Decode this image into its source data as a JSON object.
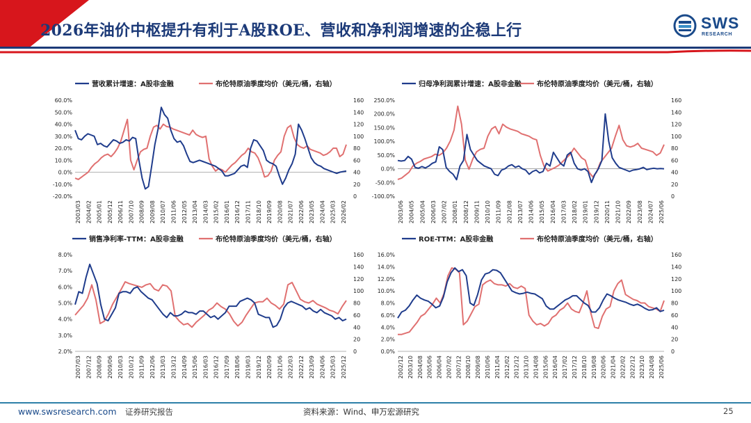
{
  "slide": {
    "title": "2026年油价中枢提升有利于A股ROE、营收和净利润增速的企稳上行",
    "colors": {
      "series": "#1f3c8c",
      "oil": "#e07070",
      "title": "#1c3a78",
      "accent": "#d7161c"
    }
  },
  "logo": {
    "name": "SWS",
    "subtitle": "RESEARCH"
  },
  "footer": {
    "url": "www.swsresearch.com",
    "tag": "证券研究报告",
    "source": "资料来源：Wind、申万宏源研究",
    "page": "25"
  },
  "chart_data": [
    {
      "type": "line",
      "series_name": "营收累计增速：A股非金融",
      "oil_name": "布伦特原油季度均价（美元/桶，右轴）",
      "y_ticks": [
        "60.0%",
        "50.0%",
        "40.0%",
        "30.0%",
        "20.0%",
        "10.0%",
        "0.0%",
        "-10.0%",
        "-20.0%"
      ],
      "ylim": [
        -20,
        60
      ],
      "y2_ticks": [
        "160",
        "140",
        "120",
        "100",
        "80",
        "60",
        "40",
        "20",
        "0"
      ],
      "y2lim": [
        0,
        160
      ],
      "x_ticks": [
        "2003/03",
        "2004/02",
        "2005/01",
        "2005/12",
        "2006/11",
        "2007/10",
        "2008/09",
        "2009/08",
        "2010/07",
        "2011/06",
        "2012/05",
        "2013/04",
        "2014/03",
        "2015/02",
        "2016/01",
        "2016/12",
        "2017/11",
        "2018/10",
        "2019/09",
        "2020/08",
        "2021/07",
        "2022/06",
        "2023/05",
        "2024/04",
        "2025/03",
        "2026/02"
      ],
      "series": [
        35,
        28,
        27,
        30,
        32,
        31,
        30,
        23,
        24,
        22,
        21,
        24,
        27,
        26,
        24,
        25,
        27,
        26,
        29,
        28,
        10,
        -5,
        -14,
        -12,
        5,
        23,
        36,
        54,
        48,
        45,
        35,
        28,
        25,
        26,
        22,
        15,
        9,
        8,
        9,
        10,
        9,
        8,
        7,
        6,
        5,
        3,
        1,
        -3,
        -3,
        -2,
        -1,
        2,
        5,
        6,
        4,
        20,
        27,
        26,
        22,
        18,
        10,
        8,
        7,
        5,
        -3,
        -10,
        -5,
        2,
        7,
        15,
        40,
        35,
        28,
        20,
        12,
        8,
        6,
        5,
        3,
        2,
        1,
        0,
        -1,
        0,
        0.5,
        1
      ],
      "oil": [
        30,
        28,
        32,
        36,
        40,
        48,
        54,
        58,
        64,
        68,
        70,
        66,
        72,
        80,
        92,
        110,
        128,
        60,
        44,
        60,
        74,
        78,
        80,
        100,
        115,
        118,
        112,
        120,
        116,
        115,
        112,
        110,
        108,
        106,
        104,
        102,
        110,
        103,
        100,
        98,
        100,
        62,
        50,
        42,
        46,
        44,
        40,
        46,
        52,
        56,
        62,
        68,
        72,
        80,
        74,
        72,
        64,
        50,
        32,
        34,
        42,
        60,
        68,
        74,
        100,
        114,
        118,
        98,
        86,
        82,
        80,
        84,
        78,
        76,
        74,
        72,
        68,
        70,
        74,
        80,
        80,
        66,
        70,
        86
      ]
    },
    {
      "type": "line",
      "series_name": "归母净利润累计增速：A股非金融",
      "oil_name": "布伦特原油季度均价（美元/桶，右轴）",
      "y_ticks": [
        "250.0%",
        "200.0%",
        "150.0%",
        "100.0%",
        "50.0%",
        "0.0%",
        "-50.0%",
        "-100.0%"
      ],
      "ylim": [
        -100,
        250
      ],
      "y2_ticks": [
        "160",
        "140",
        "120",
        "100",
        "80",
        "60",
        "40",
        "20",
        "0"
      ],
      "y2lim": [
        0,
        160
      ],
      "x_ticks": [
        "2003/06",
        "2004/05",
        "2005/04",
        "2006/03",
        "2007/02",
        "2008/01",
        "2008/12",
        "2009/11",
        "2010/10",
        "2011/09",
        "2012/08",
        "2013/07",
        "2014/06",
        "2015/05",
        "2016/04",
        "2017/03",
        "2018/02",
        "2019/01",
        "2019/12",
        "2020/11",
        "2021/10",
        "2022/09",
        "2023/08",
        "2024/07",
        "2025/06"
      ],
      "series": [
        30,
        28,
        30,
        45,
        35,
        5,
        2,
        8,
        3,
        10,
        20,
        25,
        80,
        70,
        5,
        -10,
        -20,
        -40,
        10,
        30,
        125,
        70,
        50,
        30,
        20,
        10,
        5,
        0,
        -20,
        -25,
        -5,
        0,
        10,
        15,
        5,
        10,
        0,
        -5,
        -20,
        -10,
        -5,
        -15,
        -10,
        20,
        10,
        60,
        40,
        20,
        10,
        50,
        60,
        20,
        0,
        -5,
        0,
        -10,
        -50,
        -20,
        0,
        30,
        200,
        100,
        40,
        20,
        5,
        0,
        -5,
        -10,
        -5,
        -3,
        0,
        5,
        -3,
        0,
        2,
        0,
        1,
        0
      ],
      "oil": [
        28,
        30,
        35,
        40,
        50,
        55,
        58,
        62,
        64,
        66,
        70,
        68,
        72,
        80,
        92,
        110,
        150,
        120,
        60,
        45,
        62,
        74,
        78,
        80,
        100,
        112,
        116,
        104,
        120,
        115,
        112,
        110,
        108,
        104,
        102,
        100,
        96,
        94,
        68,
        50,
        42,
        45,
        48,
        52,
        58,
        64,
        70,
        80,
        72,
        64,
        60,
        40,
        32,
        40,
        56,
        64,
        72,
        80,
        100,
        118,
        94,
        84,
        82,
        84,
        88,
        80,
        78,
        76,
        74,
        68,
        72,
        86
      ]
    },
    {
      "type": "line",
      "series_name": "销售净利率-TTM：A股非金融",
      "oil_name": "布伦特原油季度均价（美元/桶，右轴）",
      "y_ticks": [
        "8.0%",
        "7.0%",
        "6.0%",
        "5.0%",
        "4.0%",
        "3.0%",
        "2.0%"
      ],
      "ylim": [
        2,
        8
      ],
      "y2_ticks": [
        "160",
        "140",
        "120",
        "100",
        "80",
        "60",
        "40",
        "20",
        "0"
      ],
      "y2lim": [
        0,
        160
      ],
      "x_ticks": [
        "2007/03",
        "2007/12",
        "2008/09",
        "2009/06",
        "2010/03",
        "2010/12",
        "2011/09",
        "2012/06",
        "2013/03",
        "2013/12",
        "2014/09",
        "2015/06",
        "2016/03",
        "2016/12",
        "2017/09",
        "2018/06",
        "2019/03",
        "2019/12",
        "2020/09",
        "2021/06",
        "2022/03",
        "2022/12",
        "2023/09",
        "2024/06",
        "2025/03",
        "2025/12"
      ],
      "series": [
        4.9,
        5.7,
        5.6,
        6.6,
        7.4,
        6.8,
        6.2,
        4.9,
        4.0,
        3.9,
        4.3,
        4.7,
        5.6,
        5.7,
        5.7,
        5.6,
        5.9,
        6.0,
        5.7,
        5.5,
        5.3,
        5.2,
        4.9,
        4.6,
        4.3,
        4.1,
        4.4,
        4.2,
        4.2,
        4.3,
        4.5,
        4.4,
        4.4,
        4.3,
        4.5,
        4.5,
        4.3,
        4.1,
        4.2,
        4.0,
        4.2,
        4.4,
        4.8,
        4.8,
        4.8,
        5.1,
        5.2,
        5.3,
        5.2,
        5.0,
        4.3,
        4.2,
        4.1,
        4.1,
        3.5,
        3.6,
        4.0,
        4.7,
        5.0,
        5.1,
        5.0,
        4.9,
        4.8,
        4.6,
        4.7,
        4.5,
        4.4,
        4.6,
        4.4,
        4.3,
        4.2,
        4.0,
        4.1,
        3.9,
        4.0
      ],
      "oil": [
        60,
        68,
        76,
        88,
        110,
        85,
        46,
        50,
        62,
        78,
        90,
        102,
        115,
        112,
        110,
        108,
        106,
        110,
        112,
        103,
        100,
        110,
        108,
        100,
        58,
        50,
        44,
        46,
        40,
        48,
        54,
        60,
        68,
        72,
        80,
        74,
        70,
        62,
        50,
        42,
        48,
        60,
        70,
        80,
        82,
        82,
        88,
        80,
        76,
        70,
        78,
        110,
        114,
        100,
        86,
        82,
        80,
        84,
        78,
        75,
        72,
        68,
        66,
        62,
        74,
        84
      ]
    },
    {
      "type": "line",
      "series_name": "ROE-TTM：A股非金融",
      "oil_name": "布伦特原油季度均价（美元/桶，右轴）",
      "y_ticks": [
        "16.0%",
        "14.0%",
        "12.0%",
        "10.0%",
        "8.0%",
        "6.0%",
        "4.0%",
        "2.0%",
        "0.0%"
      ],
      "ylim": [
        0,
        16
      ],
      "y2_ticks": [
        "160",
        "140",
        "120",
        "100",
        "80",
        "60",
        "40",
        "20",
        "0"
      ],
      "y2lim": [
        0,
        160
      ],
      "x_ticks": [
        "2002/12",
        "2003/10",
        "2004/08",
        "2005/06",
        "2006/04",
        "2007/02",
        "2007/12",
        "2008/10",
        "2009/08",
        "2010/06",
        "2011/04",
        "2012/02",
        "2012/12",
        "2013/10",
        "2014/08",
        "2015/06",
        "2016/04",
        "2017/02",
        "2017/12",
        "2018/10",
        "2019/08",
        "2020/06",
        "2021/04",
        "2022/02",
        "2022/12",
        "2023/10",
        "2024/08",
        "2025/06"
      ],
      "series": [
        5.5,
        6.5,
        6.8,
        7.5,
        8.5,
        9.3,
        8.8,
        8.5,
        8.3,
        7.8,
        7.2,
        7.5,
        9,
        11.5,
        13,
        13.8,
        13.2,
        13.5,
        12.5,
        8,
        7.6,
        9.4,
        11.8,
        12.8,
        13,
        13.5,
        13.4,
        13.0,
        12,
        11,
        10,
        9.7,
        9.5,
        9.6,
        9.8,
        9.6,
        9.5,
        9.1,
        8.7,
        7.5,
        7.0,
        7.0,
        7.5,
        8.0,
        8.5,
        8.8,
        9.2,
        9.2,
        8.6,
        8.0,
        7.6,
        6.5,
        6.5,
        7.2,
        8.5,
        9.5,
        9.2,
        8.8,
        8.5,
        8.3,
        8.1,
        7.8,
        7.6,
        7.8,
        7.5,
        7.1,
        6.8,
        6.9,
        7.2,
        6.6,
        6.8
      ],
      "oil": [
        28,
        28,
        30,
        32,
        40,
        48,
        58,
        62,
        70,
        78,
        88,
        80,
        96,
        125,
        138,
        136,
        130,
        44,
        50,
        62,
        74,
        78,
        110,
        115,
        118,
        112,
        110,
        110,
        108,
        112,
        106,
        104,
        108,
        104,
        60,
        50,
        44,
        46,
        42,
        46,
        56,
        60,
        68,
        72,
        80,
        70,
        66,
        64,
        80,
        100,
        64,
        40,
        38,
        58,
        70,
        74,
        100,
        112,
        118,
        94,
        90,
        86,
        84,
        80,
        80,
        74,
        72,
        70,
        66,
        84
      ]
    }
  ]
}
